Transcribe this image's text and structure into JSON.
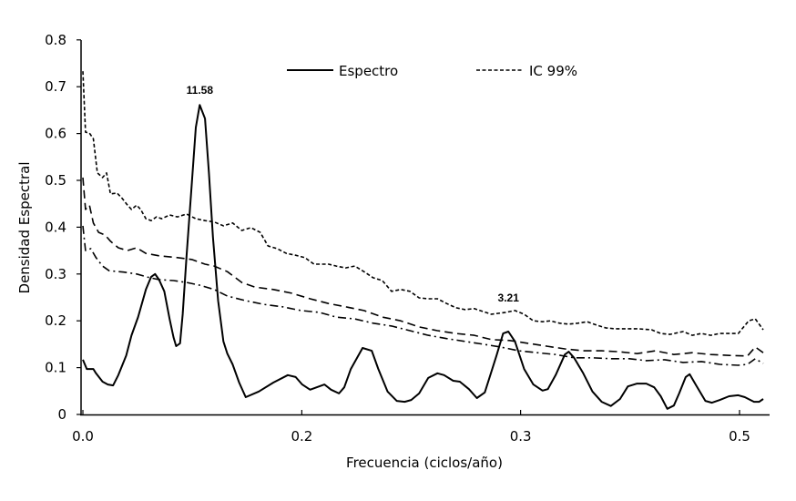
{
  "chart_data": {
    "type": "line",
    "title": "",
    "xlabel": "Frecuencia (ciclos/año)",
    "ylabel": "Densidad Espectral",
    "xlim": [
      0,
      0.518
    ],
    "ylim": [
      0,
      0.8
    ],
    "grid": false,
    "legend_placement": "top",
    "x_ticks": [
      0,
      0.1667,
      0.3333,
      0.5
    ],
    "x_tick_labels": [
      "0.0",
      "0.2",
      "0.3",
      "0.5"
    ],
    "y_ticks": [
      0,
      0.1,
      0.2,
      0.3,
      0.4,
      0.5,
      0.6,
      0.7,
      0.8
    ],
    "y_tick_labels": [
      "0",
      "0.1",
      "0.2",
      "0.3",
      "0.4",
      "0.5",
      "0.6",
      "0.7",
      "0.8"
    ],
    "annotations": [
      {
        "text": "11.58",
        "x": 0.089,
        "y": 0.661
      },
      {
        "text": "3.21",
        "x": 0.324,
        "y": 0.218
      }
    ],
    "series": [
      {
        "name": "Espectro",
        "style": "solid",
        "color": "#000000",
        "points": [
          [
            0,
            0.117
          ],
          [
            0.003,
            0.097
          ],
          [
            0.008,
            0.097
          ],
          [
            0.01,
            0.088
          ],
          [
            0.015,
            0.07
          ],
          [
            0.019,
            0.064
          ],
          [
            0.023,
            0.062
          ],
          [
            0.027,
            0.084
          ],
          [
            0.033,
            0.126
          ],
          [
            0.037,
            0.169
          ],
          [
            0.042,
            0.208
          ],
          [
            0.048,
            0.267
          ],
          [
            0.052,
            0.294
          ],
          [
            0.055,
            0.3
          ],
          [
            0.058,
            0.288
          ],
          [
            0.062,
            0.263
          ],
          [
            0.066,
            0.204
          ],
          [
            0.069,
            0.165
          ],
          [
            0.071,
            0.146
          ],
          [
            0.074,
            0.152
          ],
          [
            0.076,
            0.214
          ],
          [
            0.079,
            0.34
          ],
          [
            0.083,
            0.496
          ],
          [
            0.086,
            0.613
          ],
          [
            0.089,
            0.661
          ],
          [
            0.093,
            0.632
          ],
          [
            0.096,
            0.516
          ],
          [
            0.099,
            0.379
          ],
          [
            0.103,
            0.243
          ],
          [
            0.107,
            0.156
          ],
          [
            0.11,
            0.13
          ],
          [
            0.114,
            0.107
          ],
          [
            0.119,
            0.068
          ],
          [
            0.124,
            0.037
          ],
          [
            0.134,
            0.049
          ],
          [
            0.145,
            0.068
          ],
          [
            0.156,
            0.084
          ],
          [
            0.162,
            0.08
          ],
          [
            0.167,
            0.064
          ],
          [
            0.173,
            0.053
          ],
          [
            0.178,
            0.058
          ],
          [
            0.184,
            0.064
          ],
          [
            0.189,
            0.053
          ],
          [
            0.195,
            0.045
          ],
          [
            0.199,
            0.058
          ],
          [
            0.204,
            0.097
          ],
          [
            0.213,
            0.142
          ],
          [
            0.22,
            0.136
          ],
          [
            0.225,
            0.097
          ],
          [
            0.232,
            0.049
          ],
          [
            0.239,
            0.029
          ],
          [
            0.245,
            0.027
          ],
          [
            0.25,
            0.031
          ],
          [
            0.256,
            0.045
          ],
          [
            0.263,
            0.078
          ],
          [
            0.27,
            0.088
          ],
          [
            0.275,
            0.084
          ],
          [
            0.282,
            0.072
          ],
          [
            0.287,
            0.07
          ],
          [
            0.294,
            0.054
          ],
          [
            0.3,
            0.035
          ],
          [
            0.306,
            0.047
          ],
          [
            0.311,
            0.091
          ],
          [
            0.315,
            0.126
          ],
          [
            0.32,
            0.173
          ],
          [
            0.324,
            0.177
          ],
          [
            0.329,
            0.156
          ],
          [
            0.336,
            0.097
          ],
          [
            0.343,
            0.064
          ],
          [
            0.35,
            0.051
          ],
          [
            0.354,
            0.054
          ],
          [
            0.36,
            0.084
          ],
          [
            0.367,
            0.128
          ],
          [
            0.37,
            0.134
          ],
          [
            0.374,
            0.121
          ],
          [
            0.381,
            0.088
          ],
          [
            0.388,
            0.049
          ],
          [
            0.395,
            0.027
          ],
          [
            0.402,
            0.018
          ],
          [
            0.409,
            0.033
          ],
          [
            0.415,
            0.06
          ],
          [
            0.422,
            0.066
          ],
          [
            0.429,
            0.066
          ],
          [
            0.435,
            0.058
          ],
          [
            0.44,
            0.039
          ],
          [
            0.445,
            0.012
          ],
          [
            0.45,
            0.019
          ],
          [
            0.454,
            0.045
          ],
          [
            0.459,
            0.08
          ],
          [
            0.462,
            0.086
          ],
          [
            0.467,
            0.062
          ],
          [
            0.474,
            0.029
          ],
          [
            0.479,
            0.025
          ],
          [
            0.485,
            0.031
          ],
          [
            0.492,
            0.039
          ],
          [
            0.499,
            0.041
          ],
          [
            0.504,
            0.037
          ],
          [
            0.511,
            0.027
          ],
          [
            0.515,
            0.027
          ],
          [
            0.518,
            0.033
          ]
        ]
      },
      {
        "name": "IC 99%",
        "style": "short-dash",
        "color": "#000000",
        "points": [
          [
            0,
            0.733
          ],
          [
            0.002,
            0.603
          ],
          [
            0.005,
            0.601
          ],
          [
            0.008,
            0.589
          ],
          [
            0.011,
            0.516
          ],
          [
            0.015,
            0.506
          ],
          [
            0.018,
            0.516
          ],
          [
            0.021,
            0.471
          ],
          [
            0.026,
            0.473
          ],
          [
            0.03,
            0.461
          ],
          [
            0.034,
            0.447
          ],
          [
            0.037,
            0.438
          ],
          [
            0.041,
            0.447
          ],
          [
            0.044,
            0.438
          ],
          [
            0.048,
            0.418
          ],
          [
            0.052,
            0.414
          ],
          [
            0.056,
            0.422
          ],
          [
            0.06,
            0.418
          ],
          [
            0.066,
            0.426
          ],
          [
            0.072,
            0.422
          ],
          [
            0.079,
            0.428
          ],
          [
            0.086,
            0.418
          ],
          [
            0.093,
            0.414
          ],
          [
            0.1,
            0.411
          ],
          [
            0.107,
            0.403
          ],
          [
            0.114,
            0.409
          ],
          [
            0.121,
            0.393
          ],
          [
            0.128,
            0.399
          ],
          [
            0.135,
            0.389
          ],
          [
            0.141,
            0.36
          ],
          [
            0.148,
            0.354
          ],
          [
            0.155,
            0.344
          ],
          [
            0.162,
            0.34
          ],
          [
            0.169,
            0.335
          ],
          [
            0.176,
            0.321
          ],
          [
            0.187,
            0.321
          ],
          [
            0.193,
            0.317
          ],
          [
            0.2,
            0.313
          ],
          [
            0.207,
            0.317
          ],
          [
            0.214,
            0.305
          ],
          [
            0.221,
            0.292
          ],
          [
            0.228,
            0.286
          ],
          [
            0.235,
            0.263
          ],
          [
            0.242,
            0.267
          ],
          [
            0.249,
            0.263
          ],
          [
            0.256,
            0.249
          ],
          [
            0.263,
            0.247
          ],
          [
            0.27,
            0.247
          ],
          [
            0.277,
            0.237
          ],
          [
            0.284,
            0.228
          ],
          [
            0.291,
            0.224
          ],
          [
            0.298,
            0.226
          ],
          [
            0.311,
            0.214
          ],
          [
            0.322,
            0.218
          ],
          [
            0.329,
            0.222
          ],
          [
            0.336,
            0.214
          ],
          [
            0.343,
            0.2
          ],
          [
            0.35,
            0.198
          ],
          [
            0.356,
            0.2
          ],
          [
            0.363,
            0.195
          ],
          [
            0.37,
            0.193
          ],
          [
            0.377,
            0.195
          ],
          [
            0.384,
            0.198
          ],
          [
            0.391,
            0.191
          ],
          [
            0.398,
            0.185
          ],
          [
            0.405,
            0.183
          ],
          [
            0.412,
            0.183
          ],
          [
            0.422,
            0.183
          ],
          [
            0.433,
            0.181
          ],
          [
            0.44,
            0.173
          ],
          [
            0.447,
            0.171
          ],
          [
            0.457,
            0.177
          ],
          [
            0.464,
            0.169
          ],
          [
            0.471,
            0.173
          ],
          [
            0.478,
            0.169
          ],
          [
            0.485,
            0.173
          ],
          [
            0.492,
            0.173
          ],
          [
            0.499,
            0.173
          ],
          [
            0.502,
            0.183
          ],
          [
            0.507,
            0.2
          ],
          [
            0.512,
            0.204
          ],
          [
            0.518,
            0.181
          ]
        ]
      },
      {
        "style": "long-dash",
        "color": "#000000",
        "points": [
          [
            0,
            0.506
          ],
          [
            0.002,
            0.438
          ],
          [
            0.005,
            0.447
          ],
          [
            0.008,
            0.409
          ],
          [
            0.012,
            0.389
          ],
          [
            0.017,
            0.383
          ],
          [
            0.021,
            0.37
          ],
          [
            0.027,
            0.356
          ],
          [
            0.034,
            0.35
          ],
          [
            0.041,
            0.356
          ],
          [
            0.048,
            0.344
          ],
          [
            0.058,
            0.339
          ],
          [
            0.072,
            0.335
          ],
          [
            0.083,
            0.331
          ],
          [
            0.093,
            0.321
          ],
          [
            0.1,
            0.317
          ],
          [
            0.11,
            0.305
          ],
          [
            0.121,
            0.282
          ],
          [
            0.131,
            0.272
          ],
          [
            0.145,
            0.267
          ],
          [
            0.159,
            0.259
          ],
          [
            0.173,
            0.247
          ],
          [
            0.187,
            0.237
          ],
          [
            0.2,
            0.23
          ],
          [
            0.214,
            0.222
          ],
          [
            0.228,
            0.208
          ],
          [
            0.242,
            0.2
          ],
          [
            0.256,
            0.187
          ],
          [
            0.27,
            0.179
          ],
          [
            0.284,
            0.173
          ],
          [
            0.298,
            0.169
          ],
          [
            0.311,
            0.16
          ],
          [
            0.325,
            0.158
          ],
          [
            0.339,
            0.152
          ],
          [
            0.353,
            0.146
          ],
          [
            0.367,
            0.14
          ],
          [
            0.381,
            0.136
          ],
          [
            0.395,
            0.136
          ],
          [
            0.408,
            0.134
          ],
          [
            0.422,
            0.13
          ],
          [
            0.436,
            0.136
          ],
          [
            0.45,
            0.128
          ],
          [
            0.464,
            0.132
          ],
          [
            0.478,
            0.128
          ],
          [
            0.492,
            0.126
          ],
          [
            0.506,
            0.125
          ],
          [
            0.512,
            0.144
          ],
          [
            0.518,
            0.132
          ]
        ]
      },
      {
        "style": "dash-dot",
        "color": "#000000",
        "points": [
          [
            0,
            0.403
          ],
          [
            0.002,
            0.35
          ],
          [
            0.006,
            0.354
          ],
          [
            0.01,
            0.335
          ],
          [
            0.015,
            0.317
          ],
          [
            0.02,
            0.307
          ],
          [
            0.031,
            0.304
          ],
          [
            0.041,
            0.3
          ],
          [
            0.051,
            0.292
          ],
          [
            0.058,
            0.288
          ],
          [
            0.069,
            0.286
          ],
          [
            0.079,
            0.282
          ],
          [
            0.089,
            0.276
          ],
          [
            0.1,
            0.267
          ],
          [
            0.11,
            0.253
          ],
          [
            0.124,
            0.243
          ],
          [
            0.138,
            0.235
          ],
          [
            0.152,
            0.23
          ],
          [
            0.166,
            0.222
          ],
          [
            0.18,
            0.218
          ],
          [
            0.193,
            0.208
          ],
          [
            0.207,
            0.204
          ],
          [
            0.221,
            0.195
          ],
          [
            0.235,
            0.189
          ],
          [
            0.249,
            0.179
          ],
          [
            0.263,
            0.169
          ],
          [
            0.277,
            0.162
          ],
          [
            0.291,
            0.156
          ],
          [
            0.305,
            0.15
          ],
          [
            0.318,
            0.144
          ],
          [
            0.332,
            0.136
          ],
          [
            0.346,
            0.132
          ],
          [
            0.36,
            0.128
          ],
          [
            0.374,
            0.121
          ],
          [
            0.388,
            0.121
          ],
          [
            0.402,
            0.119
          ],
          [
            0.416,
            0.119
          ],
          [
            0.429,
            0.115
          ],
          [
            0.443,
            0.117
          ],
          [
            0.457,
            0.111
          ],
          [
            0.471,
            0.113
          ],
          [
            0.485,
            0.107
          ],
          [
            0.499,
            0.105
          ],
          [
            0.506,
            0.107
          ],
          [
            0.512,
            0.119
          ],
          [
            0.518,
            0.109
          ]
        ]
      }
    ]
  }
}
